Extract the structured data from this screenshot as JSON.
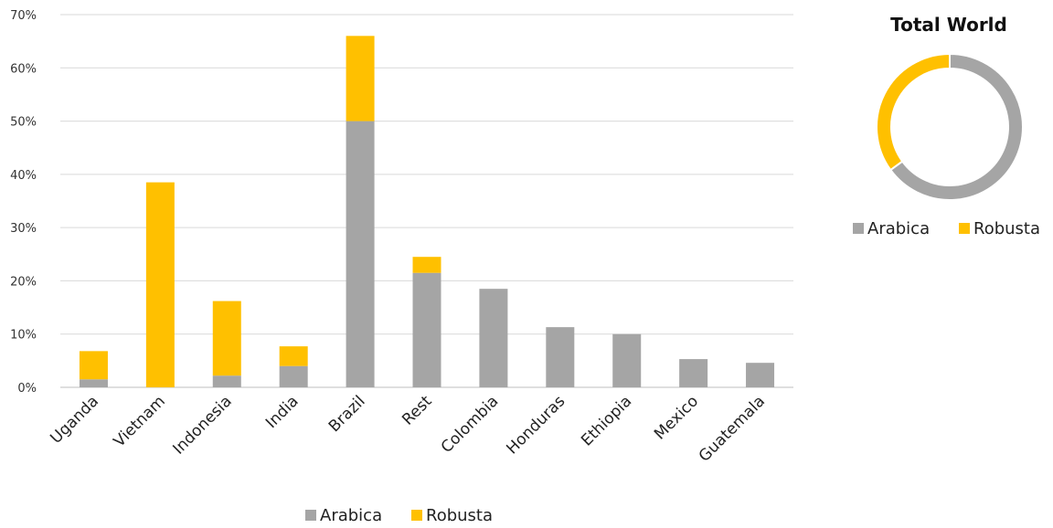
{
  "chart_data": [
    {
      "type": "bar",
      "stacked": true,
      "title": "",
      "xlabel": "",
      "ylabel": "",
      "ylim": [
        0,
        70
      ],
      "y_ticks": [
        "0%",
        "10%",
        "20%",
        "30%",
        "40%",
        "50%",
        "60%",
        "70%"
      ],
      "grid": true,
      "legend_position": "bottom",
      "categories": [
        "Uganda",
        "Vietnam",
        "Indonesia",
        "India",
        "Brazil",
        "Rest",
        "Colombia",
        "Honduras",
        "Ethiopia",
        "Mexico",
        "Guatemala"
      ],
      "series": [
        {
          "name": "Arabica",
          "color": "#a5a5a5",
          "values": [
            1.5,
            0,
            2.2,
            4.0,
            50.0,
            21.5,
            18.5,
            11.3,
            10.0,
            5.3,
            4.6
          ]
        },
        {
          "name": "Robusta",
          "color": "#ffc000",
          "values": [
            5.3,
            38.5,
            14.0,
            3.7,
            16.0,
            3.0,
            0,
            0,
            0,
            0,
            0
          ]
        }
      ]
    },
    {
      "type": "pie",
      "donut": true,
      "title": "Total World",
      "legend_position": "bottom",
      "labels": [
        "Arabica",
        "Robusta"
      ],
      "values": [
        65,
        35
      ],
      "colors": [
        "#a5a5a5",
        "#ffc000"
      ]
    }
  ]
}
